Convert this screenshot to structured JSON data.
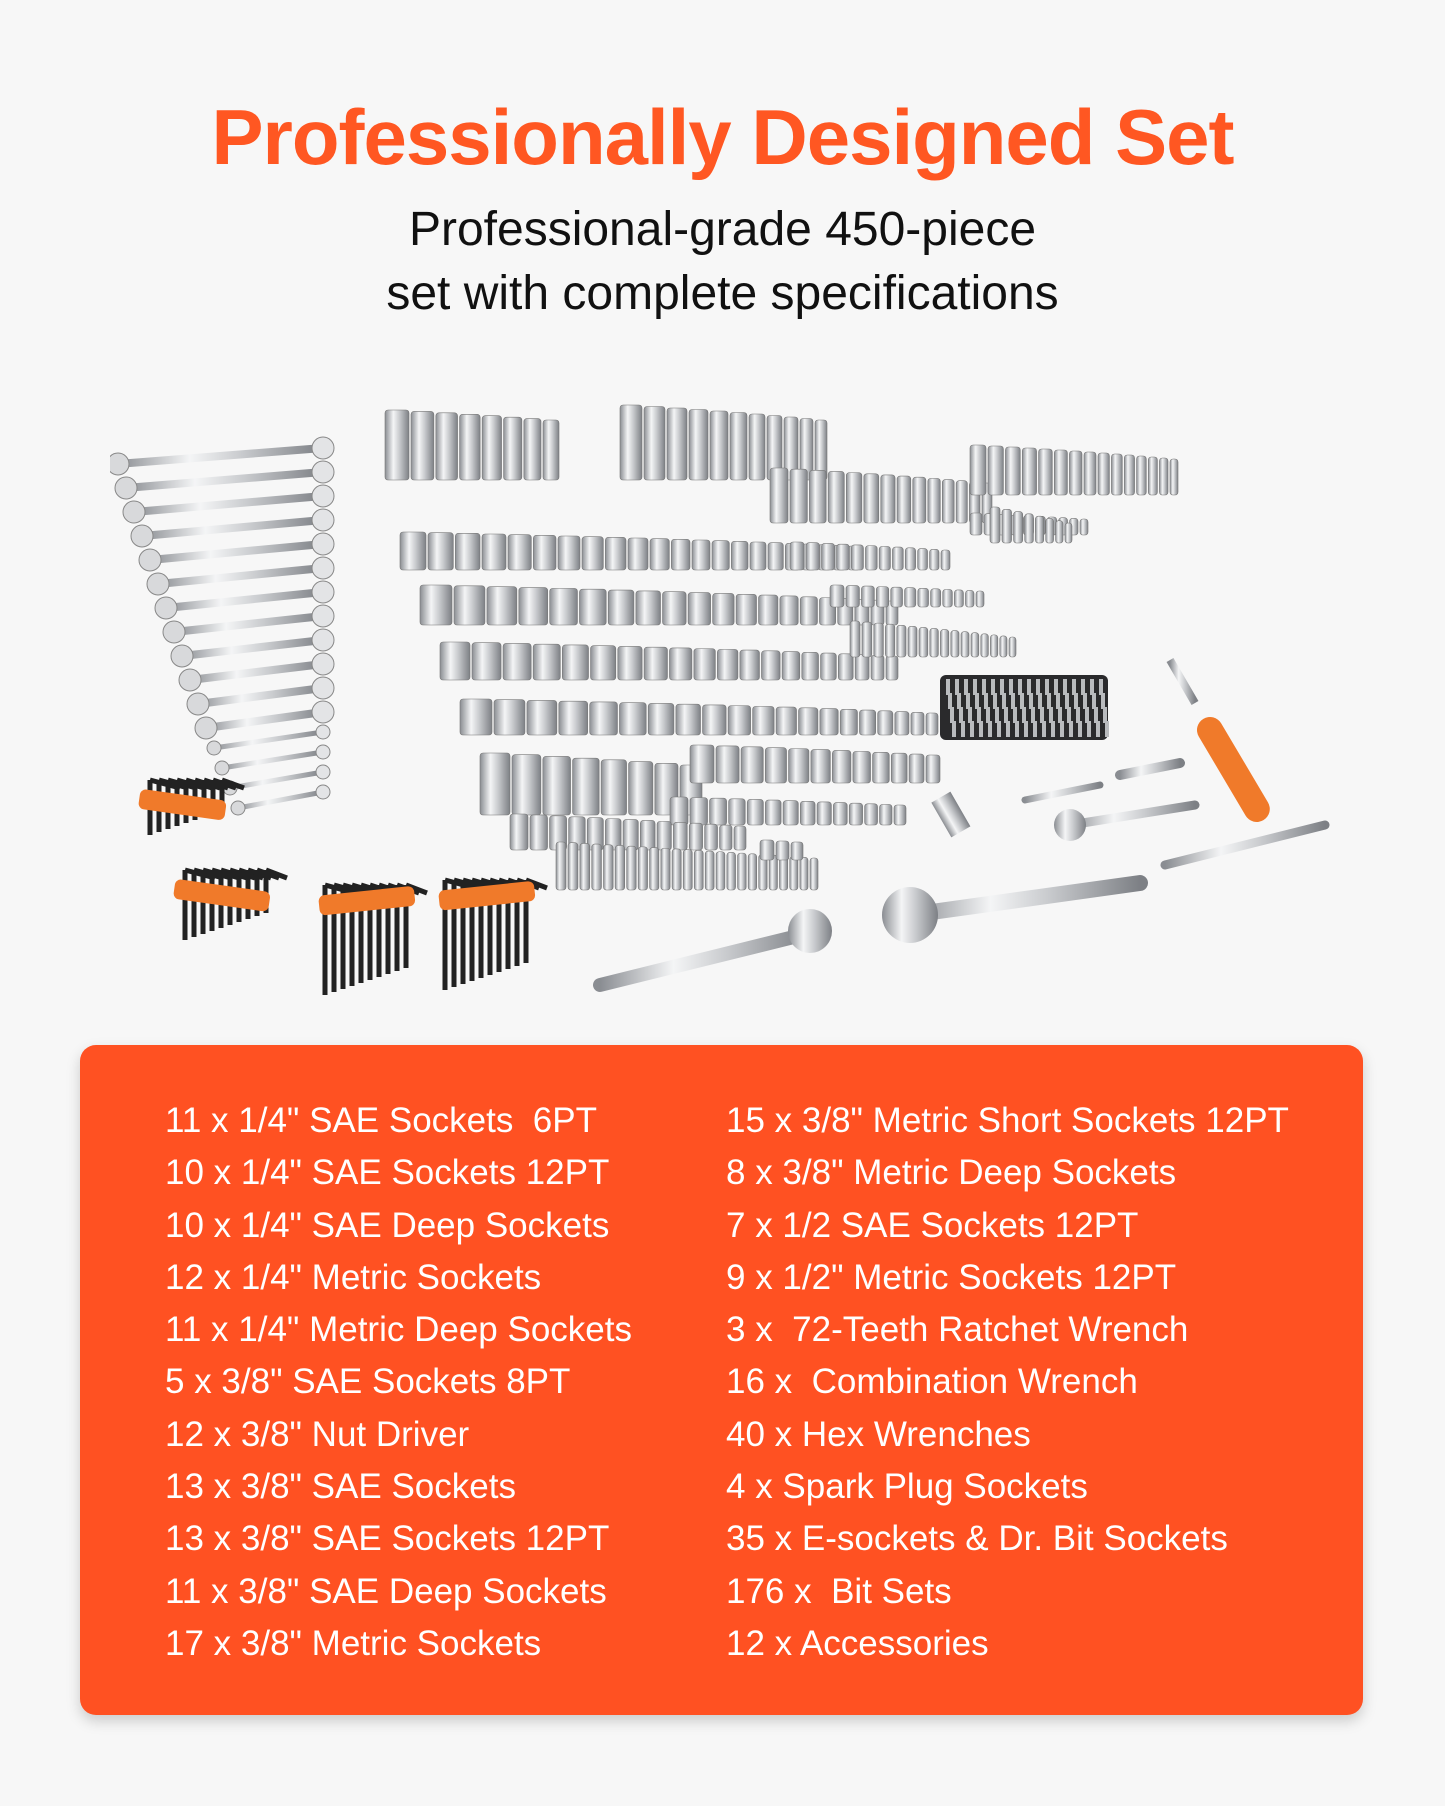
{
  "header": {
    "title": "Professionally Designed Set",
    "subtitle_line1": "Professional-grade 450-piece",
    "subtitle_line2": "set with complete specifications"
  },
  "product_image": {
    "description_icon": "tool-set-image"
  },
  "colors": {
    "accent": "#ff5722",
    "box": "#ff5122",
    "background": "#f7f7f7",
    "handle_orange": "#f07a2a"
  },
  "specs": {
    "left": [
      "11 x 1/4\" SAE Sockets  6PT",
      "10 x 1/4\" SAE Sockets 12PT",
      "10 x 1/4\" SAE Deep Sockets",
      "12 x 1/4\" Metric Sockets",
      "11 x 1/4\" Metric Deep Sockets",
      "5 x 3/8\" SAE Sockets 8PT",
      "12 x 3/8\" Nut Driver",
      "13 x 3/8\" SAE Sockets",
      "13 x 3/8\" SAE Sockets 12PT",
      "11 x 3/8\" SAE Deep Sockets",
      "17 x 3/8\" Metric Sockets"
    ],
    "right": [
      "15 x 3/8\" Metric Short Sockets 12PT",
      "8 x 3/8\" Metric Deep Sockets",
      "7 x 1/2 SAE Sockets 12PT",
      "9 x 1/2\" Metric Sockets 12PT",
      "3 x  72-Teeth Ratchet Wrench",
      "16 x  Combination Wrench",
      "40 x Hex Wrenches",
      "4 x Spark Plug Sockets",
      "35 x E-sockets & Dr. Bit Sockets",
      "176 x  Bit Sets",
      "12 x Accessories"
    ]
  }
}
